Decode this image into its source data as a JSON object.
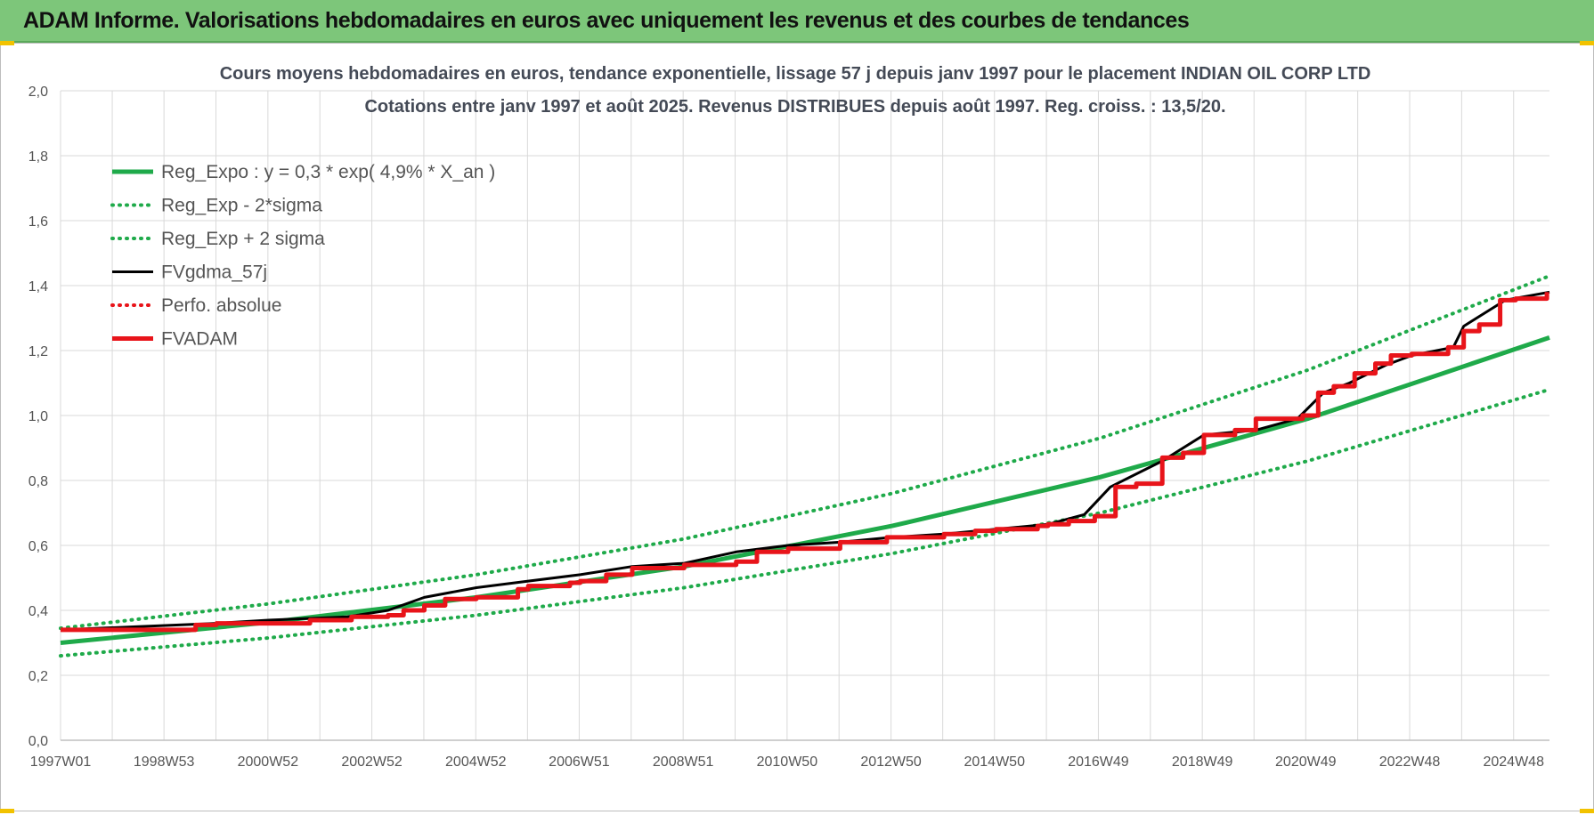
{
  "banner": {
    "title": "ADAM Informe. Valorisations hebdomadaires en euros avec uniquement les revenus et des courbes de tendances",
    "color": "#7dc67a"
  },
  "chart_data": {
    "type": "line",
    "title_lines": [
      "Cours moyens hebdomadaires en euros, tendance exponentielle, lissage 57 j depuis janv 1997  pour le placement INDIAN OIL CORP LTD",
      "Cotations entre janv 1997 et août 2025.  Revenus DISTRIBUES depuis août 1997. Reg.  croiss. : 13,5/20."
    ],
    "xlim": [
      1997.0,
      2025.65
    ],
    "ylim": [
      0,
      2.0
    ],
    "y_ticks": [
      0.0,
      0.2,
      0.4,
      0.6,
      0.8,
      1.0,
      1.2,
      1.4,
      1.6,
      1.8,
      2.0
    ],
    "y_tick_labels": [
      "0,0",
      "0,2",
      "0,4",
      "0,6",
      "0,8",
      "1,0",
      "1,2",
      "1,4",
      "1,6",
      "1,8",
      "2,0"
    ],
    "x_ticks": [
      1997.0,
      1998.99,
      2000.99,
      2002.99,
      2004.99,
      2006.98,
      2008.98,
      2010.98,
      2012.98,
      2014.97,
      2016.97,
      2018.97,
      2020.96,
      2022.96,
      2024.96
    ],
    "x_tick_labels": [
      "1997W01",
      "1998W53",
      "2000W52",
      "2002W52",
      "2004W52",
      "2006W51",
      "2008W51",
      "2010W50",
      "2012W50",
      "2014W50",
      "2016W49",
      "2018W49",
      "2020W49",
      "2022W48",
      "2024W48"
    ],
    "grid": true,
    "legend_position": "top-left",
    "series": [
      {
        "name": "Reg_Expo : y = 0,3 * exp( 4,9% *  X_an )",
        "color": "#1faa4a",
        "style": "solid",
        "x": [
          1997.0,
          2001.0,
          2005.0,
          2009.0,
          2013.0,
          2017.0,
          2021.0,
          2025.65
        ],
        "y": [
          0.3,
          0.363,
          0.44,
          0.535,
          0.66,
          0.81,
          0.99,
          1.24
        ]
      },
      {
        "name": "Reg_Exp - 2*sigma",
        "color": "#1faa4a",
        "style": "dotted",
        "x": [
          1997.0,
          2001.0,
          2005.0,
          2009.0,
          2013.0,
          2017.0,
          2021.0,
          2025.65
        ],
        "y": [
          0.26,
          0.315,
          0.385,
          0.47,
          0.575,
          0.7,
          0.86,
          1.08
        ]
      },
      {
        "name": "Reg_Exp + 2 sigma",
        "color": "#1faa4a",
        "style": "dotted",
        "x": [
          1997.0,
          2001.0,
          2005.0,
          2009.0,
          2013.0,
          2017.0,
          2021.0,
          2025.65
        ],
        "y": [
          0.345,
          0.42,
          0.51,
          0.62,
          0.76,
          0.93,
          1.14,
          1.43
        ]
      },
      {
        "name": "FVgdma_57j",
        "color": "#000000",
        "style": "solid",
        "x": [
          1997.0,
          1998.5,
          2000.0,
          2001.0,
          2002.5,
          2003.3,
          2004.0,
          2005.0,
          2006.0,
          2007.0,
          2008.0,
          2009.0,
          2010.0,
          2011.0,
          2012.0,
          2013.0,
          2014.0,
          2015.0,
          2016.0,
          2016.7,
          2017.2,
          2018.2,
          2019.0,
          2020.0,
          2020.8,
          2021.3,
          2021.8,
          2022.5,
          2023.0,
          2023.8,
          2024.0,
          2024.8,
          2025.65
        ],
        "y": [
          0.34,
          0.35,
          0.36,
          0.37,
          0.38,
          0.4,
          0.44,
          0.47,
          0.49,
          0.51,
          0.535,
          0.545,
          0.58,
          0.6,
          0.61,
          0.625,
          0.635,
          0.65,
          0.665,
          0.695,
          0.78,
          0.86,
          0.94,
          0.955,
          0.99,
          1.07,
          1.1,
          1.155,
          1.185,
          1.21,
          1.275,
          1.355,
          1.38
        ]
      },
      {
        "name": "Perfo. absolue",
        "color": "#e8141a",
        "style": "dotted",
        "x": [],
        "y": []
      },
      {
        "name": "FVADAM",
        "color": "#e8141a",
        "style": "solid-step",
        "x": [
          1997.0,
          1998.5,
          1999.6,
          2000.0,
          2001.8,
          2002.6,
          2003.3,
          2003.6,
          2004.0,
          2004.4,
          2005.0,
          2005.8,
          2006.0,
          2006.8,
          2007.0,
          2007.5,
          2008.0,
          2009.0,
          2010.0,
          2010.4,
          2011.0,
          2012.0,
          2012.9,
          2014.0,
          2014.6,
          2015.0,
          2015.8,
          2016.0,
          2016.4,
          2016.9,
          2017.3,
          2017.7,
          2018.2,
          2018.6,
          2019.0,
          2019.6,
          2020.0,
          2020.9,
          2021.2,
          2021.5,
          2021.9,
          2022.3,
          2022.6,
          2023.0,
          2023.7,
          2024.0,
          2024.3,
          2024.7,
          2025.0,
          2025.6
        ],
        "y": [
          0.34,
          0.34,
          0.355,
          0.36,
          0.37,
          0.38,
          0.385,
          0.4,
          0.415,
          0.435,
          0.44,
          0.465,
          0.475,
          0.485,
          0.49,
          0.51,
          0.53,
          0.54,
          0.55,
          0.58,
          0.59,
          0.61,
          0.625,
          0.635,
          0.645,
          0.65,
          0.66,
          0.665,
          0.675,
          0.69,
          0.78,
          0.79,
          0.87,
          0.885,
          0.94,
          0.955,
          0.99,
          1.0,
          1.07,
          1.09,
          1.13,
          1.16,
          1.185,
          1.19,
          1.21,
          1.26,
          1.28,
          1.355,
          1.36,
          1.38
        ]
      }
    ]
  }
}
